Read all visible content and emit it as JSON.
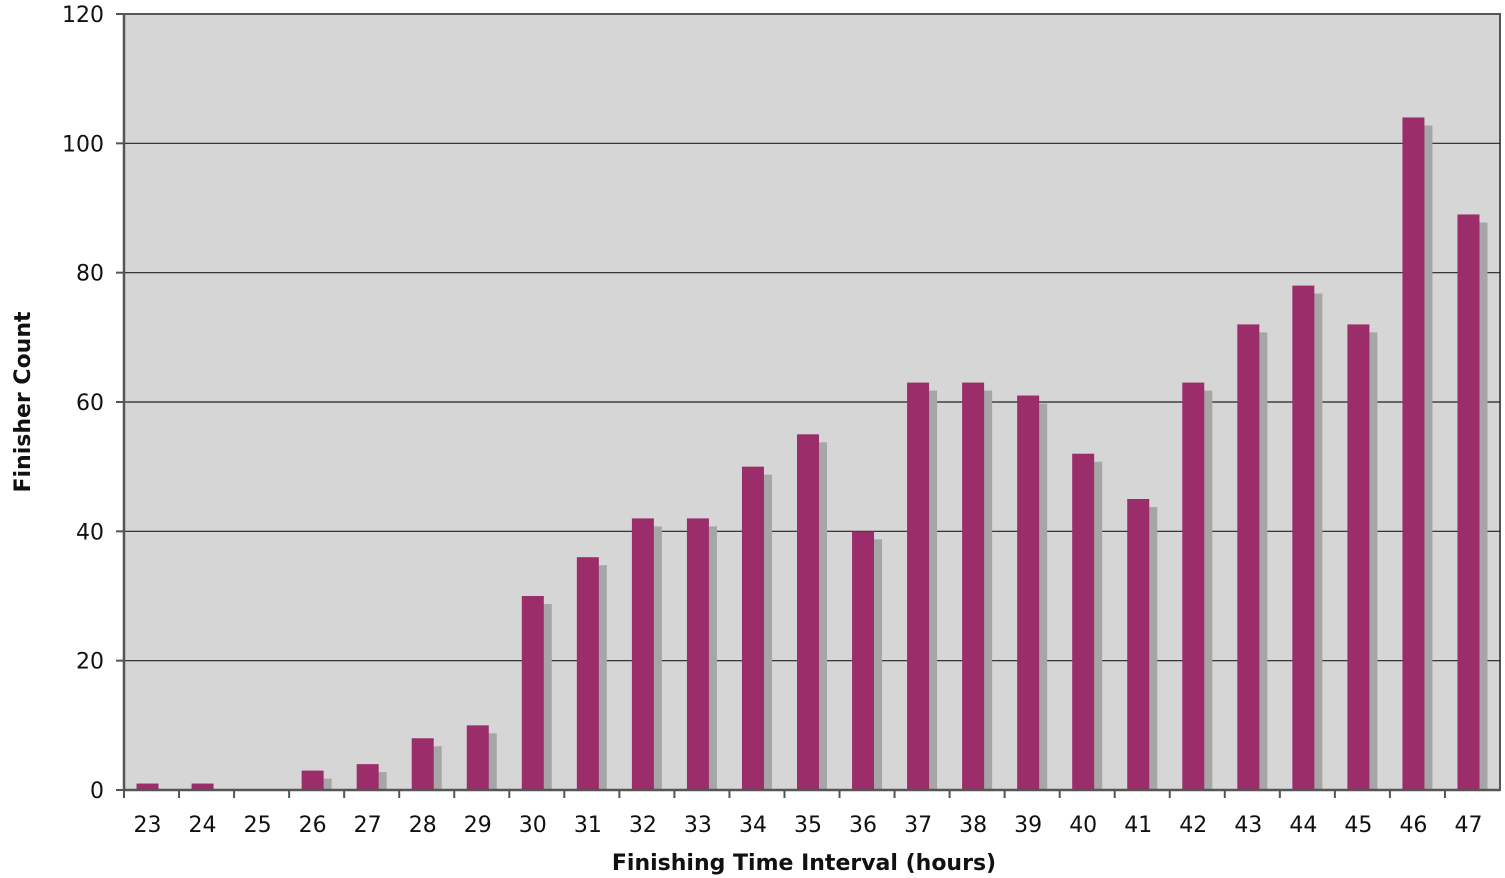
{
  "chart_data": {
    "type": "bar",
    "title": "",
    "xlabel": "Finishing Time Interval (hours)",
    "ylabel": "Finisher Count",
    "categories": [
      "23",
      "24",
      "25",
      "26",
      "27",
      "28",
      "29",
      "30",
      "31",
      "32",
      "33",
      "34",
      "35",
      "36",
      "37",
      "38",
      "39",
      "40",
      "41",
      "42",
      "43",
      "44",
      "45",
      "46",
      "47"
    ],
    "values": [
      1,
      1,
      0,
      3,
      4,
      8,
      10,
      30,
      36,
      42,
      42,
      50,
      55,
      40,
      63,
      63,
      61,
      52,
      45,
      63,
      72,
      78,
      72,
      104,
      89
    ],
    "ylim": [
      0,
      120
    ],
    "yticks": [
      0,
      20,
      40,
      60,
      80,
      100,
      120
    ],
    "grid": true,
    "legend": "none"
  },
  "colors": {
    "bar": "#9b2d6a",
    "bar_shadow": "#a6a6a6",
    "plot_background": "#d6d6d6",
    "gridline": "#222222",
    "axis": "#555555"
  }
}
